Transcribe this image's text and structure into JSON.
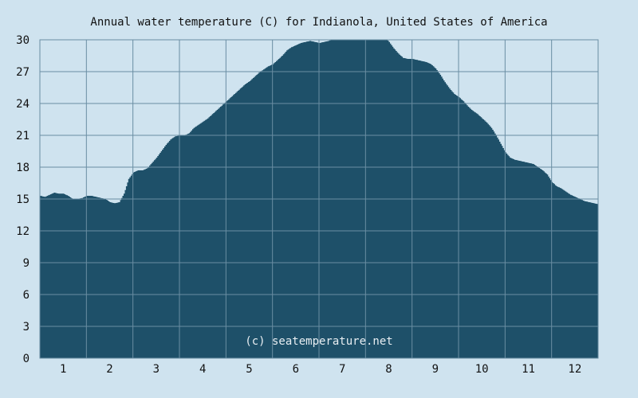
{
  "chart_data": {
    "type": "area",
    "title": "Annual water temperature (C) for Indianola, United States of America",
    "credit": "(c) seatemperature.net",
    "xlabel": "",
    "ylabel": "",
    "x_ticks": [
      "1",
      "2",
      "3",
      "4",
      "5",
      "6",
      "7",
      "8",
      "9",
      "10",
      "11",
      "12"
    ],
    "y_ticks": [
      "0",
      "3",
      "6",
      "9",
      "12",
      "15",
      "18",
      "21",
      "24",
      "27",
      "30"
    ],
    "xlim": [
      0.5,
      12.5
    ],
    "ylim": [
      0,
      30
    ],
    "grid": true,
    "colors": {
      "background": "#cfe3ef",
      "fill": "#1e5069",
      "grid": "#6a8ea3"
    },
    "x": [
      0.5,
      0.6,
      0.7,
      0.8,
      0.9,
      1.0,
      1.1,
      1.2,
      1.3,
      1.4,
      1.5,
      1.6,
      1.7,
      1.8,
      1.9,
      2.0,
      2.1,
      2.2,
      2.3,
      2.4,
      2.5,
      2.6,
      2.7,
      2.8,
      2.9,
      3.0,
      3.1,
      3.2,
      3.3,
      3.4,
      3.5,
      3.6,
      3.7,
      3.8,
      3.9,
      4.0,
      4.1,
      4.2,
      4.3,
      4.4,
      4.5,
      4.6,
      4.7,
      4.8,
      4.9,
      5.0,
      5.1,
      5.2,
      5.3,
      5.4,
      5.5,
      5.6,
      5.7,
      5.8,
      5.9,
      6.0,
      6.1,
      6.2,
      6.3,
      6.4,
      6.5,
      6.6,
      6.7,
      6.8,
      6.9,
      7.0,
      7.1,
      7.2,
      7.3,
      7.4,
      7.5,
      7.6,
      7.7,
      7.8,
      7.9,
      8.0,
      8.1,
      8.2,
      8.3,
      8.4,
      8.5,
      8.6,
      8.7,
      8.8,
      8.9,
      9.0,
      9.1,
      9.2,
      9.3,
      9.4,
      9.5,
      9.6,
      9.7,
      9.8,
      9.9,
      10.0,
      10.1,
      10.2,
      10.3,
      10.4,
      10.5,
      10.6,
      10.7,
      10.8,
      10.9,
      11.0,
      11.1,
      11.2,
      11.3,
      11.4,
      11.5,
      11.6,
      11.7,
      11.8,
      11.9,
      12.0,
      12.1,
      12.2,
      12.3,
      12.4,
      12.5
    ],
    "values": [
      15.3,
      15.2,
      15.4,
      15.6,
      15.5,
      15.5,
      15.3,
      15.0,
      15.0,
      15.1,
      15.3,
      15.3,
      15.2,
      15.1,
      15.0,
      14.7,
      14.6,
      14.7,
      15.5,
      16.9,
      17.5,
      17.7,
      17.7,
      17.9,
      18.4,
      18.9,
      19.5,
      20.1,
      20.6,
      20.9,
      21.0,
      21.0,
      21.2,
      21.7,
      22.0,
      22.3,
      22.6,
      23.0,
      23.4,
      23.8,
      24.2,
      24.6,
      25.0,
      25.4,
      25.8,
      26.1,
      26.5,
      26.9,
      27.2,
      27.5,
      27.7,
      28.1,
      28.5,
      29.0,
      29.3,
      29.5,
      29.7,
      29.8,
      29.9,
      29.8,
      29.7,
      29.8,
      29.9,
      30.1,
      30.1,
      30.0,
      30.0,
      30.2,
      30.6,
      30.9,
      31.0,
      31.0,
      30.9,
      30.6,
      30.3,
      29.8,
      29.2,
      28.7,
      28.3,
      28.2,
      28.2,
      28.1,
      28.0,
      27.9,
      27.7,
      27.3,
      26.7,
      26.0,
      25.4,
      24.9,
      24.6,
      24.2,
      23.7,
      23.3,
      23.0,
      22.6,
      22.2,
      21.7,
      21.0,
      20.2,
      19.4,
      18.9,
      18.7,
      18.6,
      18.5,
      18.4,
      18.3,
      18.0,
      17.7,
      17.3,
      16.6,
      16.2,
      16.0,
      15.7,
      15.4,
      15.2,
      15.0,
      14.8,
      14.7,
      14.6,
      14.5
    ]
  }
}
